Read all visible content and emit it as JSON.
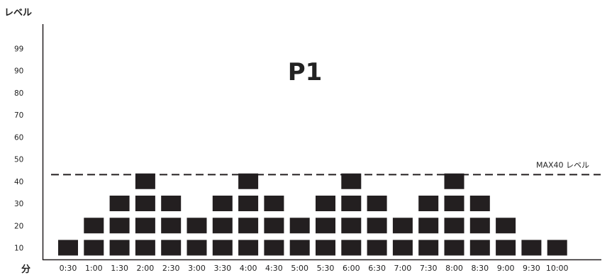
{
  "chart_data": {
    "type": "bar",
    "title": "P1",
    "ylabel": "レベル",
    "xlabel": "分",
    "y_tick_labels": [
      "10",
      "20",
      "30",
      "40",
      "50",
      "60",
      "70",
      "80",
      "90",
      "99"
    ],
    "categories": [
      "0:30",
      "1:00",
      "1:30",
      "2:00",
      "2:30",
      "3:00",
      "3:30",
      "4:00",
      "4:30",
      "5:00",
      "5:30",
      "6:00",
      "6:30",
      "7:00",
      "7:30",
      "8:00",
      "8:30",
      "9:00",
      "9:30",
      "10:00"
    ],
    "values": [
      10,
      20,
      30,
      40,
      30,
      20,
      30,
      40,
      30,
      20,
      30,
      40,
      30,
      20,
      30,
      40,
      30,
      20,
      10,
      10
    ],
    "max_line": {
      "value": 43,
      "label": "MAX40 レベル"
    },
    "bar_color": "#231f20",
    "line_color": "#231f20"
  }
}
